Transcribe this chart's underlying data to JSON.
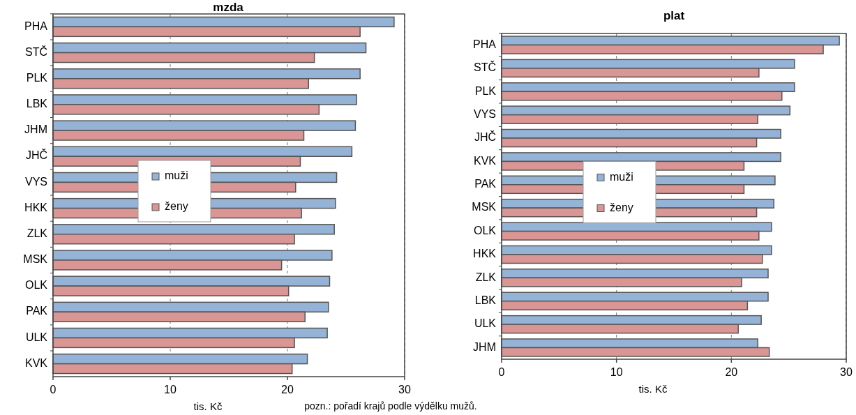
{
  "chart_data": [
    {
      "type": "bar",
      "orientation": "horizontal",
      "title": "mzda",
      "xlabel": "tis. Kč",
      "categories": [
        "PHA",
        "STČ",
        "PLK",
        "LBK",
        "JHM",
        "JHČ",
        "VYS",
        "HKK",
        "ZLK",
        "MSK",
        "OLK",
        "PAK",
        "ULK",
        "KVK"
      ],
      "series": [
        {
          "name": "muži",
          "color": "#95b3d7",
          "values": [
            29.1,
            26.7,
            26.2,
            25.9,
            25.8,
            25.5,
            24.2,
            24.1,
            24.0,
            23.8,
            23.6,
            23.5,
            23.4,
            21.7
          ]
        },
        {
          "name": "ženy",
          "color": "#d99694",
          "values": [
            26.2,
            22.3,
            21.8,
            22.7,
            21.4,
            21.1,
            20.7,
            21.2,
            20.6,
            19.5,
            20.1,
            21.5,
            20.6,
            20.4
          ]
        }
      ],
      "xlim": [
        0,
        30
      ],
      "xticks": [
        0,
        10,
        20,
        30
      ],
      "grid": "x",
      "legend": "center",
      "annotations": [
        "pozn.: pořadí krajů podle výdělku mužů."
      ]
    },
    {
      "type": "bar",
      "orientation": "horizontal",
      "title": "plat",
      "xlabel": "tis. Kč",
      "categories": [
        "PHA",
        "STČ",
        "PLK",
        "VYS",
        "JHČ",
        "KVK",
        "PAK",
        "MSK",
        "OLK",
        "HKK",
        "ZLK",
        "LBK",
        "ULK",
        "JHM"
      ],
      "series": [
        {
          "name": "muži",
          "color": "#95b3d7",
          "values": [
            29.4,
            25.5,
            25.5,
            25.1,
            24.3,
            24.3,
            23.8,
            23.7,
            23.5,
            23.5,
            23.2,
            23.2,
            22.6,
            22.3
          ]
        },
        {
          "name": "ženy",
          "color": "#d99694",
          "values": [
            28.0,
            22.4,
            24.4,
            22.3,
            22.2,
            21.1,
            21.1,
            22.2,
            22.4,
            22.7,
            20.9,
            21.4,
            20.6,
            23.3
          ]
        }
      ],
      "xlim": [
        0,
        30
      ],
      "xticks": [
        0,
        10,
        20,
        30
      ],
      "grid": "x",
      "legend": "center"
    }
  ]
}
